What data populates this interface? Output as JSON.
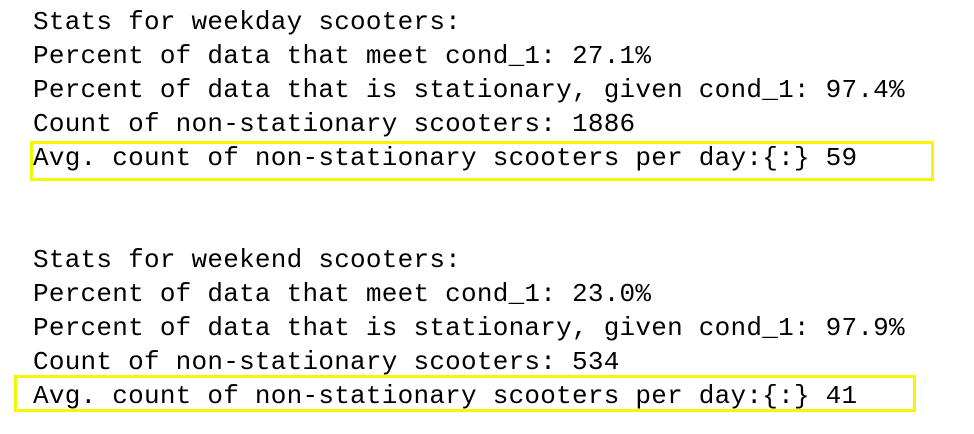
{
  "weekday": {
    "header": "Stats for weekday scooters:",
    "percent_meet": "Percent of data that meet cond_1: 27.1%",
    "percent_stationary": "Percent of data that is stationary, given cond_1: 97.4%",
    "count_non_stationary": "Count of non-stationary scooters: 1886",
    "avg_count": "Avg. count of non-stationary scooters per day:{:} 59"
  },
  "weekend": {
    "header": "Stats for weekend scooters:",
    "percent_meet": "Percent of data that meet cond_1: 23.0%",
    "percent_stationary": "Percent of data that is stationary, given cond_1: 97.9%",
    "count_non_stationary": "Count of non-stationary scooters: 534",
    "avg_count": "Avg. count of non-stationary scooters per day:{:} 41"
  },
  "colors": {
    "text": "#000000",
    "highlight": "#f7f600",
    "background": "#ffffff"
  }
}
